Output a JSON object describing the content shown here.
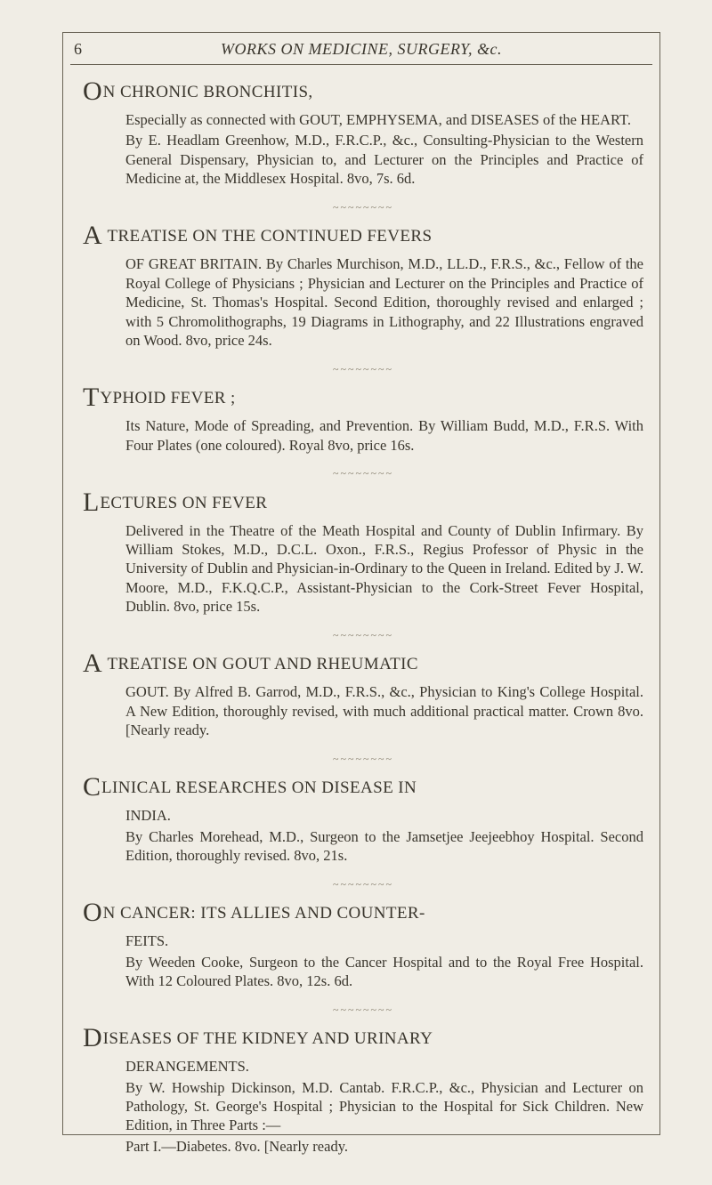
{
  "page_number": "6",
  "running_title": "WORKS ON MEDICINE, SURGERY, &c.",
  "separator_glyphs": "~~~~~~~~",
  "colors": {
    "background": "#f0ede5",
    "text": "#3a362d",
    "rule": "#6a6456"
  },
  "typography": {
    "body_fontsize_pt": 11,
    "heading_fontsize_pt": 14,
    "dropcap_fontsize_pt": 22,
    "font_family": "Times New Roman / old-style serif"
  },
  "entries": [
    {
      "dropcap": "O",
      "title_first": "N",
      "title_rest": " CHRONIC BRONCHITIS,",
      "body": "Especially as connected with GOUT, EMPHYSEMA, and DISEASES of the HEART.\nBy E. Headlam Greenhow, M.D., F.R.C.P., &c., Consulting-Physician to the Western General Dispensary, Physician to, and Lecturer on the Principles and Practice of Medicine at, the Middlesex Hospital. 8vo, 7s. 6d."
    },
    {
      "dropcap": "A",
      "title_first": "",
      "title_rest": " TREATISE ON THE CONTINUED FEVERS",
      "body": "OF GREAT BRITAIN. By Charles Murchison, M.D., LL.D., F.R.S., &c., Fellow of the Royal College of Physicians ; Physician and Lecturer on the Principles and Practice of Medicine, St. Thomas's Hospital. Second Edition, thoroughly revised and enlarged ; with 5 Chromolithographs, 19 Diagrams in Lithography, and 22 Illustrations engraved on Wood. 8vo, price 24s."
    },
    {
      "dropcap": "T",
      "title_first": "",
      "title_rest": "YPHOID FEVER ;",
      "body": "Its Nature, Mode of Spreading, and Prevention. By William Budd, M.D., F.R.S. With Four Plates (one coloured). Royal 8vo, price 16s."
    },
    {
      "dropcap": "L",
      "title_first": "",
      "title_rest": "ECTURES ON FEVER",
      "body": "Delivered in the Theatre of the Meath Hospital and County of Dublin Infirmary. By William Stokes, M.D., D.C.L. Oxon., F.R.S., Regius Professor of Physic in the University of Dublin and Physician-in-Ordinary to the Queen in Ireland. Edited by J. W. Moore, M.D., F.K.Q.C.P., Assistant-Physician to the Cork-Street Fever Hospital, Dublin. 8vo, price 15s."
    },
    {
      "dropcap": "A",
      "title_first": "",
      "title_rest": " TREATISE ON GOUT AND RHEUMATIC",
      "body": "GOUT. By Alfred B. Garrod, M.D., F.R.S., &c., Physician to King's College Hospital. A New Edition, thoroughly revised, with much additional practical matter. Crown 8vo. [Nearly ready."
    },
    {
      "dropcap": "C",
      "title_first": "",
      "title_rest": "LINICAL RESEARCHES ON DISEASE IN",
      "body": "INDIA.\nBy Charles Morehead, M.D., Surgeon to the Jamsetjee Jeejeebhoy Hospital. Second Edition, thoroughly revised. 8vo, 21s."
    },
    {
      "dropcap": "O",
      "title_first": "",
      "title_rest": "N CANCER: ITS ALLIES AND COUNTER-",
      "body": "FEITS.\nBy Weeden Cooke, Surgeon to the Cancer Hospital and to the Royal Free Hospital. With 12 Coloured Plates. 8vo, 12s. 6d."
    },
    {
      "dropcap": "D",
      "title_first": "",
      "title_rest": "ISEASES OF THE KIDNEY AND URINARY",
      "body": "DERANGEMENTS.\nBy W. Howship Dickinson, M.D. Cantab. F.R.C.P., &c., Physician and Lecturer on Pathology, St. George's Hospital ; Physician to the Hospital for Sick Children. New Edition, in Three Parts :—\nPart I.—Diabetes. 8vo. [Nearly ready."
    }
  ]
}
